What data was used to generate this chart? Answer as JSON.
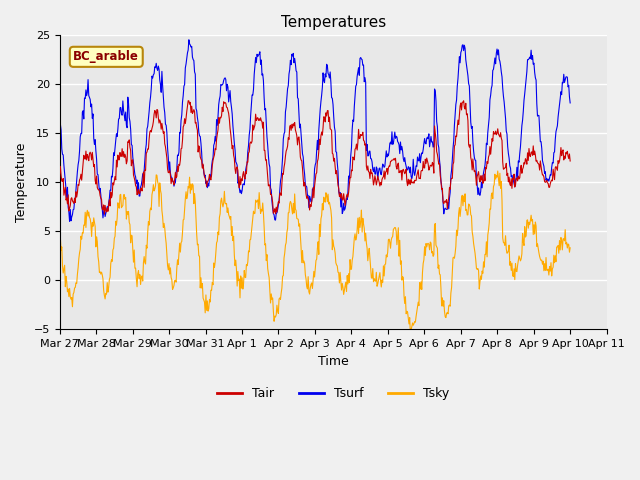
{
  "title": "Temperatures",
  "xlabel": "Time",
  "ylabel": "Temperature",
  "annotation": "BC_arable",
  "ylim": [
    -5,
    25
  ],
  "xlim": [
    0,
    336
  ],
  "plot_bg_color": "#e8e8e8",
  "fig_bg_color": "#f0f0f0",
  "line_colors": {
    "Tair": "#cc0000",
    "Tsurf": "#0000ee",
    "Tsky": "#ffaa00"
  },
  "tick_labels": [
    "Mar 27",
    "Mar 28",
    "Mar 29",
    "Mar 30",
    "Mar 31",
    "Apr 1",
    "Apr 2",
    "Apr 3",
    "Apr 4",
    "Apr 5",
    "Apr 6",
    "Apr 7",
    "Apr 8",
    "Apr 9",
    "Apr 10",
    "Apr 11"
  ],
  "tick_positions": [
    0,
    24,
    48,
    72,
    96,
    120,
    144,
    168,
    192,
    216,
    240,
    264,
    288,
    312,
    336,
    360
  ],
  "yticks": [
    -5,
    0,
    5,
    10,
    15,
    20,
    25
  ],
  "figsize": [
    6.4,
    4.8
  ],
  "dpi": 100
}
